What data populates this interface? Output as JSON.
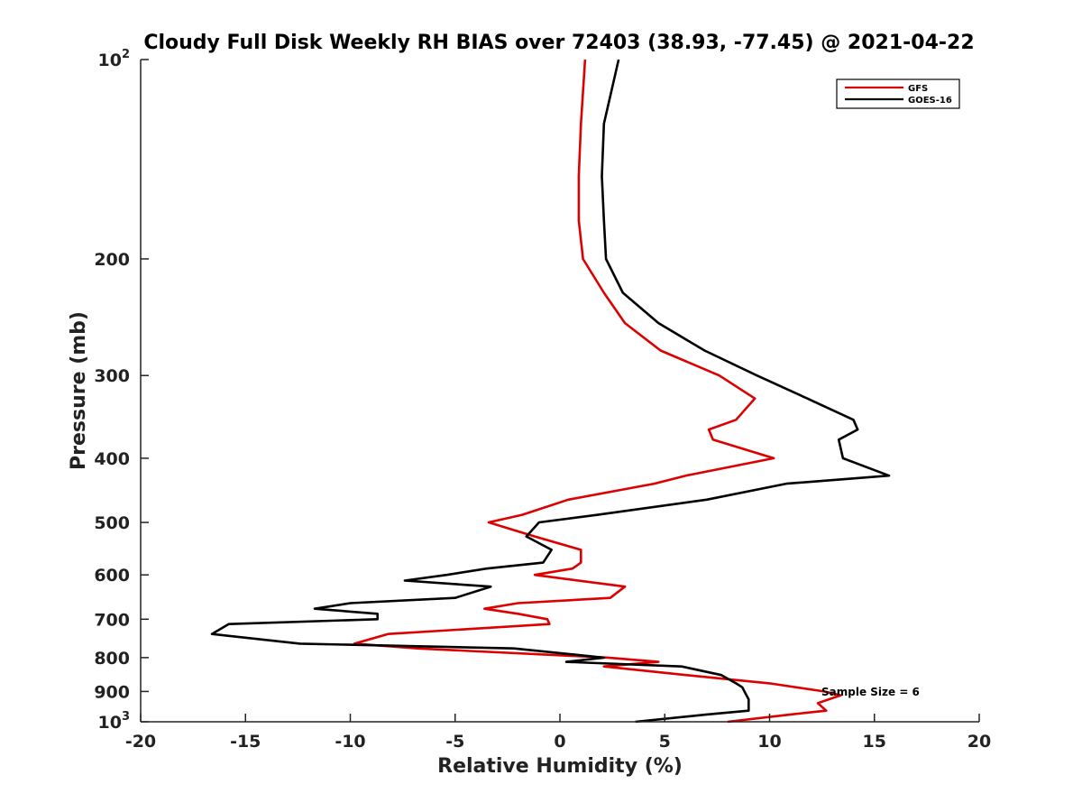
{
  "chart_data": {
    "type": "line",
    "title": "Cloudy Full Disk Weekly RH BIAS over 72403 (38.93, -77.45) @ 2021-04-22",
    "xlabel": "Relative Humidity (%)",
    "ylabel": "Pressure (mb)",
    "xlim": [
      -20,
      20
    ],
    "ylim": [
      100,
      1000
    ],
    "y_scale": "log",
    "y_reversed": true,
    "x_ticks": [
      "-20",
      "-15",
      "-10",
      "-5",
      "0",
      "5",
      "10",
      "15",
      "20"
    ],
    "y_ticks": [
      {
        "value": 100,
        "base": "10",
        "exp": "2"
      },
      {
        "value": 200,
        "label": "200"
      },
      {
        "value": 300,
        "label": "300"
      },
      {
        "value": 400,
        "label": "400"
      },
      {
        "value": 500,
        "label": "500"
      },
      {
        "value": 600,
        "label": "600"
      },
      {
        "value": 700,
        "label": "700"
      },
      {
        "value": 800,
        "label": "800"
      },
      {
        "value": 900,
        "label": "900"
      },
      {
        "value": 1000,
        "base": "10",
        "exp": "3"
      }
    ],
    "legend": {
      "position": "top-right"
    },
    "annotation": "Sample Size = 6",
    "grid": false,
    "series": [
      {
        "name": "GFS",
        "color": "#dd0000",
        "points": [
          [
            1.2,
            100
          ],
          [
            1.0,
            125
          ],
          [
            0.9,
            150
          ],
          [
            0.9,
            175
          ],
          [
            1.1,
            200
          ],
          [
            2.1,
            225
          ],
          [
            3.1,
            250
          ],
          [
            4.8,
            275
          ],
          [
            7.6,
            300
          ],
          [
            9.3,
            325
          ],
          [
            8.4,
            350
          ],
          [
            7.1,
            362
          ],
          [
            7.3,
            375
          ],
          [
            10.2,
            400
          ],
          [
            6.0,
            425
          ],
          [
            4.5,
            437
          ],
          [
            0.4,
            462
          ],
          [
            -1.8,
            487
          ],
          [
            -3.4,
            500
          ],
          [
            -1.2,
            525
          ],
          [
            1.0,
            550
          ],
          [
            1.0,
            575
          ],
          [
            0.6,
            587
          ],
          [
            -1.2,
            600
          ],
          [
            3.1,
            625
          ],
          [
            2.4,
            650
          ],
          [
            -2.0,
            662
          ],
          [
            -3.6,
            675
          ],
          [
            -2.0,
            687
          ],
          [
            -0.6,
            700
          ],
          [
            -0.5,
            712
          ],
          [
            -8.2,
            737
          ],
          [
            -9.8,
            762
          ],
          [
            -6.8,
            775
          ],
          [
            2.3,
            800
          ],
          [
            4.7,
            812
          ],
          [
            2.1,
            825
          ],
          [
            6.0,
            850
          ],
          [
            10.0,
            875
          ],
          [
            12.6,
            900
          ],
          [
            13.4,
            912
          ],
          [
            12.3,
            937
          ],
          [
            12.7,
            962
          ],
          [
            11.0,
            975
          ],
          [
            8.0,
            1000
          ]
        ]
      },
      {
        "name": "GOES-16",
        "color": "#000000",
        "points": [
          [
            2.8,
            100
          ],
          [
            2.1,
            125
          ],
          [
            2.0,
            150
          ],
          [
            2.1,
            175
          ],
          [
            2.2,
            200
          ],
          [
            3.0,
            225
          ],
          [
            4.7,
            250
          ],
          [
            6.9,
            275
          ],
          [
            9.4,
            300
          ],
          [
            11.8,
            325
          ],
          [
            14.0,
            350
          ],
          [
            14.2,
            362
          ],
          [
            13.3,
            375
          ],
          [
            13.5,
            400
          ],
          [
            15.7,
            425
          ],
          [
            10.8,
            437
          ],
          [
            7.0,
            462
          ],
          [
            1.8,
            487
          ],
          [
            -1.0,
            500
          ],
          [
            -1.6,
            525
          ],
          [
            -0.4,
            550
          ],
          [
            -0.8,
            575
          ],
          [
            -3.5,
            587
          ],
          [
            -5.4,
            600
          ],
          [
            -7.4,
            612
          ],
          [
            -3.3,
            625
          ],
          [
            -5.0,
            650
          ],
          [
            -10.0,
            662
          ],
          [
            -11.7,
            675
          ],
          [
            -8.7,
            687
          ],
          [
            -8.7,
            700
          ],
          [
            -15.8,
            712
          ],
          [
            -16.6,
            737
          ],
          [
            -12.4,
            762
          ],
          [
            -2.2,
            775
          ],
          [
            2.1,
            800
          ],
          [
            0.3,
            812
          ],
          [
            5.8,
            825
          ],
          [
            7.7,
            850
          ],
          [
            8.4,
            875
          ],
          [
            8.7,
            887
          ],
          [
            8.8,
            900
          ],
          [
            9.0,
            925
          ],
          [
            9.0,
            962
          ],
          [
            7.0,
            975
          ],
          [
            3.6,
            1000
          ]
        ]
      }
    ]
  }
}
